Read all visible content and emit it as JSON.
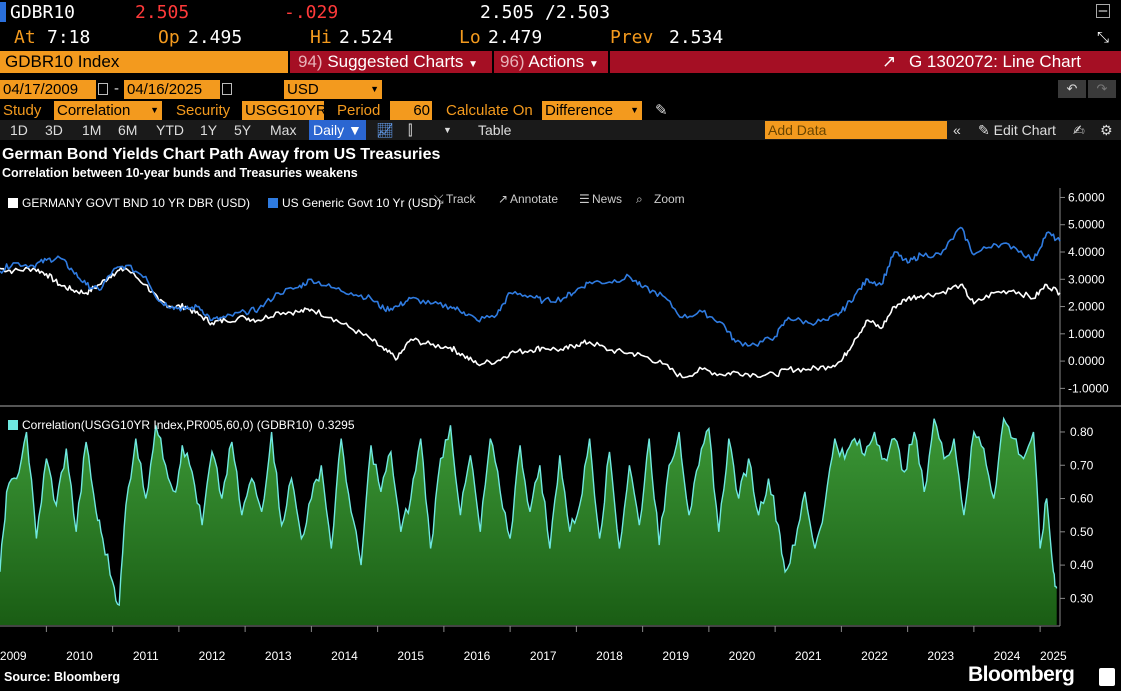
{
  "quote": {
    "ticker": "GDBR10",
    "last": "2.505",
    "change": "-.029",
    "bid_ask": "2.505 /2.503",
    "at_label": "At",
    "at_time": "7:18",
    "open_label": "Op",
    "open": "2.495",
    "high_label": "Hi",
    "high": "2.524",
    "low_label": "Lo",
    "low": "2.479",
    "prev_label": "Prev",
    "prev": "2.534"
  },
  "toolbar": {
    "index_name": "GDBR10 Index",
    "suggested_num": "94)",
    "suggested_label": "Suggested Charts",
    "actions_num": "96)",
    "actions_label": "Actions",
    "chart_id": "G 1302072: Line Chart"
  },
  "dates": {
    "start": "04/17/2009",
    "end": "04/16/2025",
    "currency": "USD"
  },
  "study": {
    "study_label": "Study",
    "study_value": "Correlation",
    "security_label": "Security",
    "security_value": "USGG10YR",
    "period_label": "Period",
    "period_value": "60",
    "calc_label": "Calculate On",
    "calc_value": "Difference"
  },
  "ranges": {
    "items": [
      "1D",
      "3D",
      "1M",
      "6M",
      "YTD",
      "1Y",
      "5Y",
      "Max"
    ],
    "frequency": "Daily",
    "table_label": "Table",
    "add_data_placeholder": "Add Data",
    "edit_chart_label": "Edit Chart"
  },
  "chart_tools": {
    "track": "Track",
    "annotate": "Annotate",
    "news": "News",
    "zoom": "Zoom"
  },
  "colors": {
    "amber": "#f39a1e",
    "bloomberg_red": "#a50f24",
    "germany_line": "#ffffff",
    "us_line": "#2f7be0",
    "correlation_line": "#6fe8e0",
    "correlation_fill": "#2f8a2a"
  },
  "chart_data": [
    {
      "type": "line",
      "title": "German Bond Yields Chart Path Away from US Treasuries",
      "subtitle": "Correlation between 10-year bunds and Treasuries weakens",
      "ylim": [
        -1.5,
        6.2
      ],
      "yticks": [
        "6.0000",
        "5.0000",
        "4.0000",
        "3.0000",
        "2.0000",
        "1.0000",
        "0.0000",
        "-1.0000"
      ],
      "yticks_values": [
        6,
        5,
        4,
        3,
        2,
        1,
        0,
        -1
      ],
      "xlim": [
        2009.3,
        2025.3
      ],
      "legend_placement": "top-left",
      "series": [
        {
          "name": "GERMANY GOVT BND 10 YR DBR (USD)",
          "color": "#ffffff",
          "x": [
            2009.3,
            2009.5,
            2009.8,
            2010.0,
            2010.2,
            2010.4,
            2010.6,
            2010.8,
            2011.0,
            2011.2,
            2011.5,
            2011.7,
            2011.9,
            2012.1,
            2012.3,
            2012.5,
            2012.7,
            2013.0,
            2013.2,
            2013.5,
            2013.8,
            2014.0,
            2014.3,
            2014.6,
            2014.9,
            2015.1,
            2015.3,
            2015.5,
            2015.8,
            2016.1,
            2016.3,
            2016.5,
            2016.8,
            2017.0,
            2017.3,
            2017.5,
            2017.8,
            2018.0,
            2018.2,
            2018.5,
            2018.8,
            2019.0,
            2019.3,
            2019.6,
            2019.9,
            2020.2,
            2020.4,
            2020.7,
            2021.0,
            2021.2,
            2021.5,
            2021.8,
            2022.0,
            2022.2,
            2022.4,
            2022.6,
            2022.8,
            2023.0,
            2023.2,
            2023.5,
            2023.8,
            2024.0,
            2024.3,
            2024.6,
            2024.9,
            2025.1,
            2025.3
          ],
          "values": [
            3.4,
            3.3,
            3.4,
            3.2,
            2.8,
            2.6,
            2.5,
            2.8,
            3.2,
            3.4,
            2.8,
            2.2,
            2.0,
            2.0,
            1.7,
            1.4,
            1.5,
            1.6,
            1.5,
            1.8,
            1.8,
            1.9,
            1.6,
            1.2,
            0.8,
            0.4,
            0.1,
            0.8,
            0.6,
            0.5,
            0.2,
            -0.1,
            0.0,
            0.3,
            0.4,
            0.5,
            0.4,
            0.6,
            0.7,
            0.4,
            0.3,
            0.2,
            -0.1,
            -0.6,
            -0.3,
            -0.5,
            -0.4,
            -0.5,
            -0.5,
            -0.3,
            -0.3,
            -0.2,
            0.0,
            0.8,
            1.5,
            1.2,
            2.0,
            2.3,
            2.4,
            2.5,
            2.8,
            2.1,
            2.5,
            2.6,
            2.3,
            2.8,
            2.5
          ]
        },
        {
          "name": "US Generic Govt 10 Yr (USD)",
          "color": "#2f7be0",
          "x": [
            2009.3,
            2009.5,
            2009.8,
            2010.0,
            2010.2,
            2010.4,
            2010.6,
            2010.8,
            2011.0,
            2011.2,
            2011.5,
            2011.7,
            2011.9,
            2012.1,
            2012.3,
            2012.5,
            2012.7,
            2013.0,
            2013.2,
            2013.5,
            2013.8,
            2014.0,
            2014.3,
            2014.6,
            2014.9,
            2015.1,
            2015.3,
            2015.5,
            2015.8,
            2016.1,
            2016.3,
            2016.5,
            2016.8,
            2017.0,
            2017.3,
            2017.5,
            2017.8,
            2018.0,
            2018.2,
            2018.5,
            2018.8,
            2019.0,
            2019.3,
            2019.6,
            2019.9,
            2020.2,
            2020.4,
            2020.7,
            2021.0,
            2021.2,
            2021.5,
            2021.8,
            2022.0,
            2022.2,
            2022.4,
            2022.6,
            2022.8,
            2023.0,
            2023.2,
            2023.5,
            2023.8,
            2024.0,
            2024.3,
            2024.6,
            2024.9,
            2025.1,
            2025.3
          ],
          "values": [
            3.3,
            3.6,
            3.5,
            3.7,
            3.8,
            3.3,
            2.8,
            2.6,
            3.3,
            3.5,
            3.1,
            2.2,
            2.0,
            1.9,
            2.0,
            1.5,
            1.6,
            1.8,
            1.9,
            2.5,
            2.7,
            3.0,
            2.7,
            2.5,
            2.3,
            1.9,
            2.0,
            2.3,
            2.1,
            2.0,
            1.8,
            1.5,
            1.7,
            2.5,
            2.4,
            2.2,
            2.3,
            2.6,
            2.9,
            2.9,
            3.1,
            2.7,
            2.4,
            1.6,
            1.8,
            1.4,
            0.7,
            0.6,
            0.9,
            1.6,
            1.4,
            1.5,
            1.8,
            2.4,
            3.0,
            2.8,
            4.0,
            3.6,
            3.9,
            3.9,
            4.9,
            3.9,
            4.3,
            4.2,
            3.7,
            4.7,
            4.4
          ]
        }
      ]
    },
    {
      "type": "area",
      "legend": "Correlation(USGG10YR Index,PR005,60,0) (GDBR10)",
      "last_value": "0.3295",
      "ylim": [
        0.22,
        0.86
      ],
      "yticks": [
        "0.80",
        "0.70",
        "0.60",
        "0.50",
        "0.40",
        "0.30"
      ],
      "yticks_values": [
        0.8,
        0.7,
        0.6,
        0.5,
        0.4,
        0.3
      ],
      "xlim": [
        2009.3,
        2025.3
      ],
      "xtick_labels": [
        "2009",
        "2010",
        "2011",
        "2012",
        "2013",
        "2014",
        "2015",
        "2016",
        "2017",
        "2018",
        "2019",
        "2020",
        "2021",
        "2022",
        "2023",
        "2024",
        "2025"
      ],
      "series": [
        {
          "name": "Correlation(USGG10YR Index,PR005,60,0) (GDBR10)",
          "x": [
            2009.3,
            2009.4,
            2009.55,
            2009.7,
            2009.85,
            2010.0,
            2010.15,
            2010.3,
            2010.45,
            2010.6,
            2010.75,
            2010.85,
            2011.0,
            2011.1,
            2011.2,
            2011.35,
            2011.5,
            2011.65,
            2011.8,
            2011.95,
            2012.05,
            2012.2,
            2012.35,
            2012.5,
            2012.65,
            2012.8,
            2012.95,
            2013.1,
            2013.25,
            2013.4,
            2013.55,
            2013.7,
            2013.85,
            2014.0,
            2014.15,
            2014.3,
            2014.45,
            2014.6,
            2014.75,
            2014.9,
            2015.05,
            2015.2,
            2015.35,
            2015.5,
            2015.65,
            2015.8,
            2015.95,
            2016.1,
            2016.25,
            2016.4,
            2016.55,
            2016.7,
            2016.85,
            2017.0,
            2017.15,
            2017.3,
            2017.45,
            2017.6,
            2017.75,
            2017.9,
            2018.05,
            2018.2,
            2018.35,
            2018.5,
            2018.65,
            2018.8,
            2018.95,
            2019.1,
            2019.25,
            2019.4,
            2019.55,
            2019.7,
            2019.85,
            2020.0,
            2020.15,
            2020.3,
            2020.45,
            2020.6,
            2020.75,
            2020.9,
            2021.05,
            2021.15,
            2021.3,
            2021.45,
            2021.6,
            2021.75,
            2021.9,
            2022.05,
            2022.2,
            2022.35,
            2022.5,
            2022.65,
            2022.8,
            2022.95,
            2023.1,
            2023.25,
            2023.4,
            2023.55,
            2023.7,
            2023.85,
            2024.0,
            2024.15,
            2024.3,
            2024.45,
            2024.6,
            2024.75,
            2024.9,
            2025.0,
            2025.1,
            2025.2,
            2025.25
          ],
          "values": [
            0.38,
            0.62,
            0.66,
            0.8,
            0.48,
            0.72,
            0.58,
            0.75,
            0.5,
            0.77,
            0.56,
            0.48,
            0.35,
            0.28,
            0.58,
            0.78,
            0.6,
            0.82,
            0.7,
            0.62,
            0.76,
            0.68,
            0.52,
            0.74,
            0.6,
            0.77,
            0.55,
            0.66,
            0.56,
            0.8,
            0.52,
            0.66,
            0.48,
            0.6,
            0.7,
            0.45,
            0.78,
            0.56,
            0.4,
            0.76,
            0.62,
            0.74,
            0.5,
            0.6,
            0.78,
            0.45,
            0.72,
            0.82,
            0.55,
            0.73,
            0.5,
            0.78,
            0.62,
            0.48,
            0.76,
            0.56,
            0.7,
            0.45,
            0.73,
            0.5,
            0.58,
            0.78,
            0.48,
            0.74,
            0.45,
            0.7,
            0.52,
            0.78,
            0.46,
            0.7,
            0.8,
            0.55,
            0.7,
            0.81,
            0.5,
            0.78,
            0.6,
            0.72,
            0.55,
            0.66,
            0.52,
            0.38,
            0.46,
            0.62,
            0.45,
            0.58,
            0.78,
            0.72,
            0.78,
            0.73,
            0.8,
            0.72,
            0.78,
            0.68,
            0.8,
            0.62,
            0.84,
            0.72,
            0.78,
            0.55,
            0.8,
            0.75,
            0.6,
            0.84,
            0.78,
            0.72,
            0.8,
            0.45,
            0.6,
            0.38,
            0.33
          ]
        }
      ]
    }
  ],
  "footer": {
    "source": "Source: Bloomberg",
    "brand": "Bloomberg"
  }
}
